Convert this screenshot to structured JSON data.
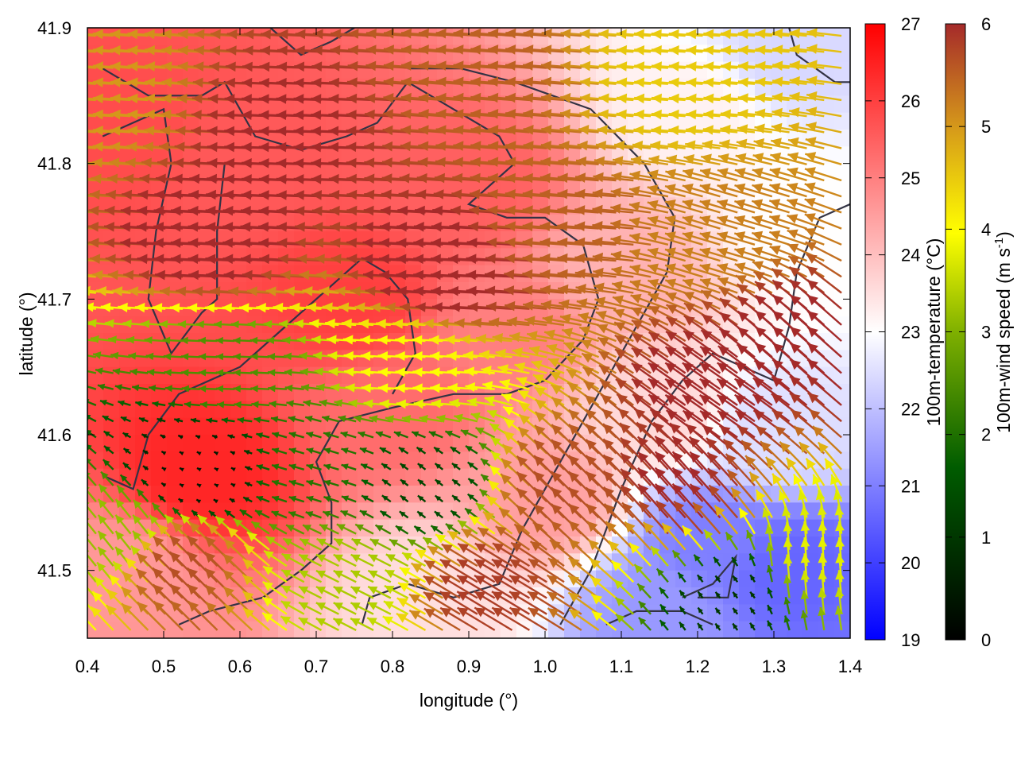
{
  "chart_data": {
    "type": "heatmap",
    "title": "",
    "xlabel": "longitude (°)",
    "ylabel": "latitude (°)",
    "xlim": [
      0.4,
      1.4
    ],
    "ylim": [
      41.45,
      41.9
    ],
    "x_ticks": [
      "0.4",
      "0.5",
      "0.6",
      "0.7",
      "0.8",
      "0.9",
      "1.0",
      "1.1",
      "1.2",
      "1.3",
      "1.4"
    ],
    "y_ticks": [
      "41.5",
      "41.6",
      "41.7",
      "41.8",
      "41.9"
    ],
    "grid": false,
    "temperature_colorbar": {
      "label": "100m-temperature (°C)",
      "range": [
        19,
        27
      ],
      "ticks": [
        "19",
        "20",
        "21",
        "22",
        "23",
        "24",
        "25",
        "26",
        "27"
      ],
      "colors": [
        "#0000ff",
        "#ffffff",
        "#ff0000"
      ]
    },
    "wind_colorbar": {
      "label_prefix": "100m-wind speed (m s",
      "label_superscript": "-1",
      "label_suffix": ")",
      "range": [
        0,
        6
      ],
      "ticks": [
        "0",
        "1",
        "2",
        "3",
        "4",
        "5",
        "6"
      ],
      "colors": [
        "#000000",
        "#006400",
        "#7fb000",
        "#ffff00",
        "#d69a1a",
        "#a52a2a"
      ]
    },
    "contour_color": "#333344",
    "temperature_field_approx": [
      {
        "lon": 0.55,
        "lat": 41.57,
        "temp": 26.4
      },
      {
        "lon": 0.75,
        "lat": 41.7,
        "temp": 26.0
      },
      {
        "lon": 0.45,
        "lat": 41.82,
        "temp": 25.8
      },
      {
        "lon": 0.6,
        "lat": 41.8,
        "temp": 25.6
      },
      {
        "lon": 0.9,
        "lat": 41.78,
        "temp": 25.5
      },
      {
        "lon": 0.8,
        "lat": 41.62,
        "temp": 25.3
      },
      {
        "lon": 0.95,
        "lat": 41.68,
        "temp": 25.0
      },
      {
        "lon": 1.1,
        "lat": 41.72,
        "temp": 24.2
      },
      {
        "lon": 1.0,
        "lat": 41.55,
        "temp": 24.5
      },
      {
        "lon": 1.15,
        "lat": 41.62,
        "temp": 23.6
      },
      {
        "lon": 0.45,
        "lat": 41.5,
        "temp": 24.6
      },
      {
        "lon": 1.2,
        "lat": 41.84,
        "temp": 23.2
      },
      {
        "lon": 1.32,
        "lat": 41.88,
        "temp": 22.4
      },
      {
        "lon": 1.35,
        "lat": 41.75,
        "temp": 23.0
      },
      {
        "lon": 1.3,
        "lat": 41.6,
        "temp": 22.5
      },
      {
        "lon": 1.22,
        "lat": 41.52,
        "temp": 21.0
      },
      {
        "lon": 1.32,
        "lat": 41.5,
        "temp": 20.6
      },
      {
        "lon": 1.15,
        "lat": 41.47,
        "temp": 21.4
      },
      {
        "lon": 0.85,
        "lat": 41.48,
        "temp": 23.5
      }
    ],
    "wind_field_approx": [
      {
        "lon": 0.45,
        "lat": 41.85,
        "u": -5.0,
        "v": 0.3
      },
      {
        "lon": 0.7,
        "lat": 41.82,
        "u": -6.0,
        "v": 0.2
      },
      {
        "lon": 0.95,
        "lat": 41.86,
        "u": -5.5,
        "v": 0.4
      },
      {
        "lon": 1.2,
        "lat": 41.86,
        "u": -4.5,
        "v": 0.3
      },
      {
        "lon": 0.6,
        "lat": 41.74,
        "u": -6.2,
        "v": 0.3
      },
      {
        "lon": 0.9,
        "lat": 41.72,
        "u": -6.2,
        "v": 0.3
      },
      {
        "lon": 1.05,
        "lat": 41.75,
        "u": -5.5,
        "v": 0.4
      },
      {
        "lon": 1.25,
        "lat": 41.74,
        "u": -5.0,
        "v": 1.5
      },
      {
        "lon": 0.6,
        "lat": 41.65,
        "u": -2.5,
        "v": 0.1
      },
      {
        "lon": 0.85,
        "lat": 41.65,
        "u": -4.0,
        "v": 0.2
      },
      {
        "lon": 1.25,
        "lat": 41.62,
        "u": -5.0,
        "v": 3.5
      },
      {
        "lon": 1.35,
        "lat": 41.66,
        "u": -4.5,
        "v": 4.0
      },
      {
        "lon": 0.55,
        "lat": 41.57,
        "u": -0.4,
        "v": 0.2
      },
      {
        "lon": 0.7,
        "lat": 41.57,
        "u": -2.0,
        "v": 0.6
      },
      {
        "lon": 0.85,
        "lat": 41.56,
        "u": -1.0,
        "v": 0.8
      },
      {
        "lon": 1.05,
        "lat": 41.55,
        "u": -4.0,
        "v": 4.0
      },
      {
        "lon": 1.2,
        "lat": 41.55,
        "u": -4.0,
        "v": 4.5
      },
      {
        "lon": 0.45,
        "lat": 41.52,
        "u": -2.0,
        "v": 2.5
      },
      {
        "lon": 0.55,
        "lat": 41.49,
        "u": -4.0,
        "v": 4.0
      },
      {
        "lon": 0.75,
        "lat": 41.49,
        "u": -3.0,
        "v": 1.5
      },
      {
        "lon": 0.95,
        "lat": 41.48,
        "u": -5.0,
        "v": 3.0
      },
      {
        "lon": 1.25,
        "lat": 41.48,
        "u": -0.6,
        "v": 0.8
      },
      {
        "lon": 1.35,
        "lat": 41.5,
        "u": -0.3,
        "v": 3.8
      }
    ]
  }
}
